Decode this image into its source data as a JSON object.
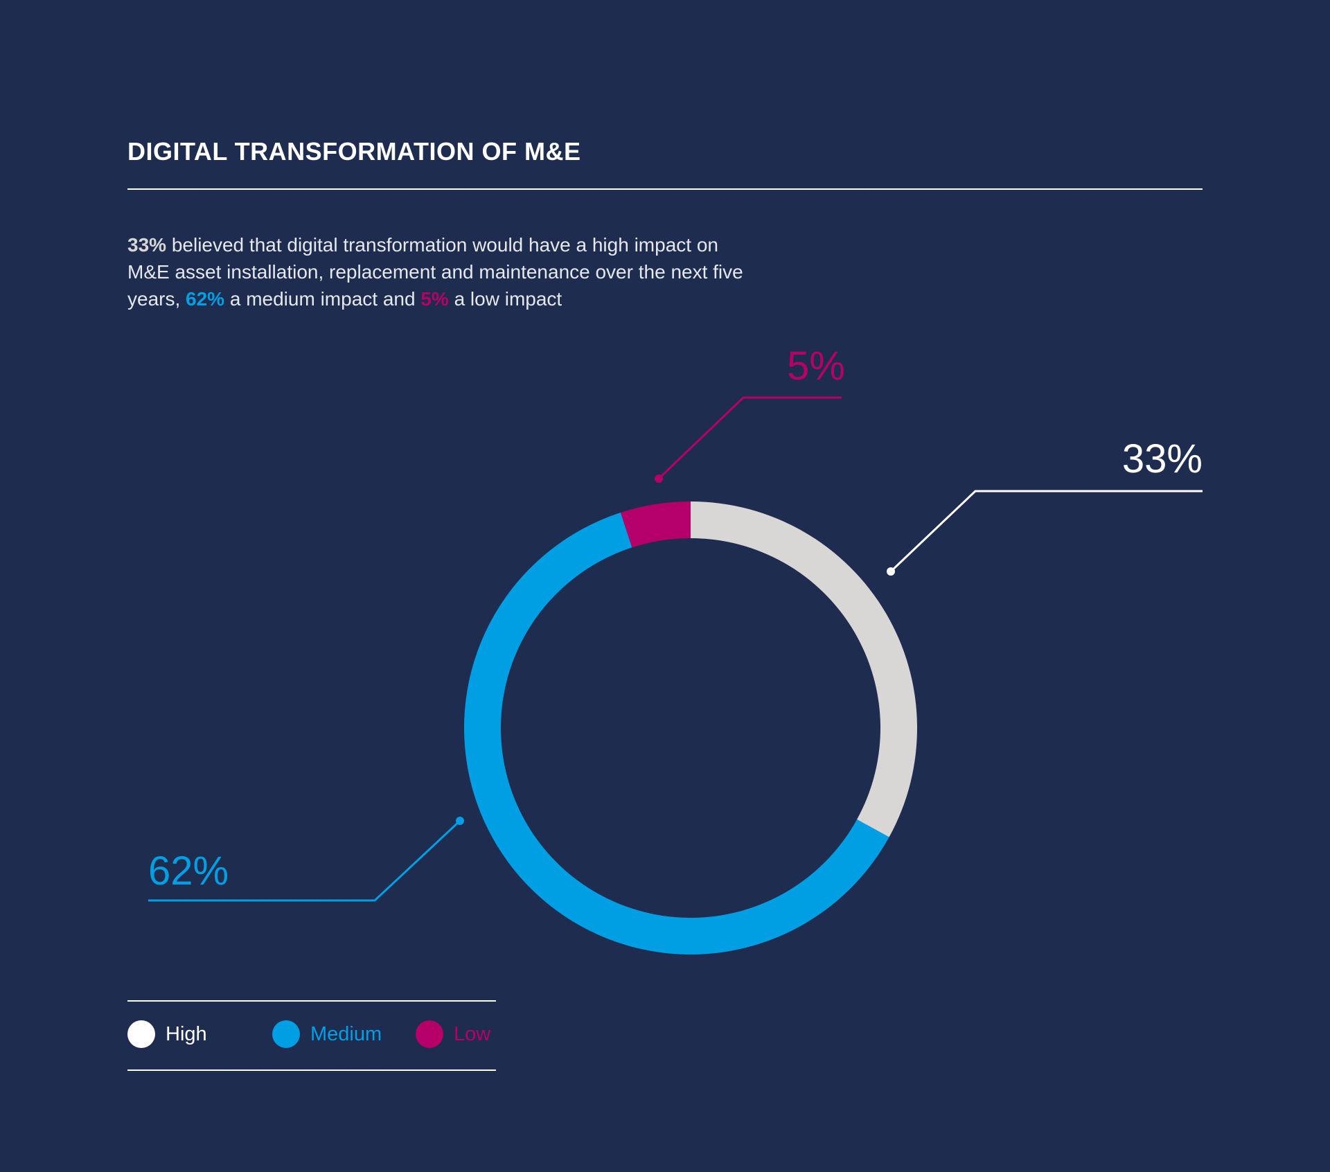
{
  "title": "DIGITAL TRANSFORMATION OF M&E",
  "description": {
    "high_value": "33%",
    "part1": " believed that digital transformation would have a high impact on M&E asset installation, replacement and maintenance over the next five years, ",
    "medium_value": "62%",
    "part2": " a medium impact and ",
    "low_value": "5%",
    "part3": " a low impact"
  },
  "colors": {
    "background": "#1e2c4f",
    "high": "#d9d7d6",
    "medium": "#009fe3",
    "low": "#b5006a"
  },
  "chart_data": {
    "type": "pie",
    "variant": "donut",
    "title": "DIGITAL TRANSFORMATION OF M&E",
    "slices": [
      {
        "label": "High",
        "value": 33,
        "display": "33%",
        "color": "#d9d7d6"
      },
      {
        "label": "Medium",
        "value": 62,
        "display": "62%",
        "color": "#009fe3"
      },
      {
        "label": "Low",
        "value": 5,
        "display": "5%",
        "color": "#b5006a"
      }
    ],
    "legend_position": "bottom-left"
  },
  "legend": [
    {
      "label": "High",
      "color": "#ffffff"
    },
    {
      "label": "Medium",
      "color": "#009fe3"
    },
    {
      "label": "Low",
      "color": "#b5006a"
    }
  ]
}
